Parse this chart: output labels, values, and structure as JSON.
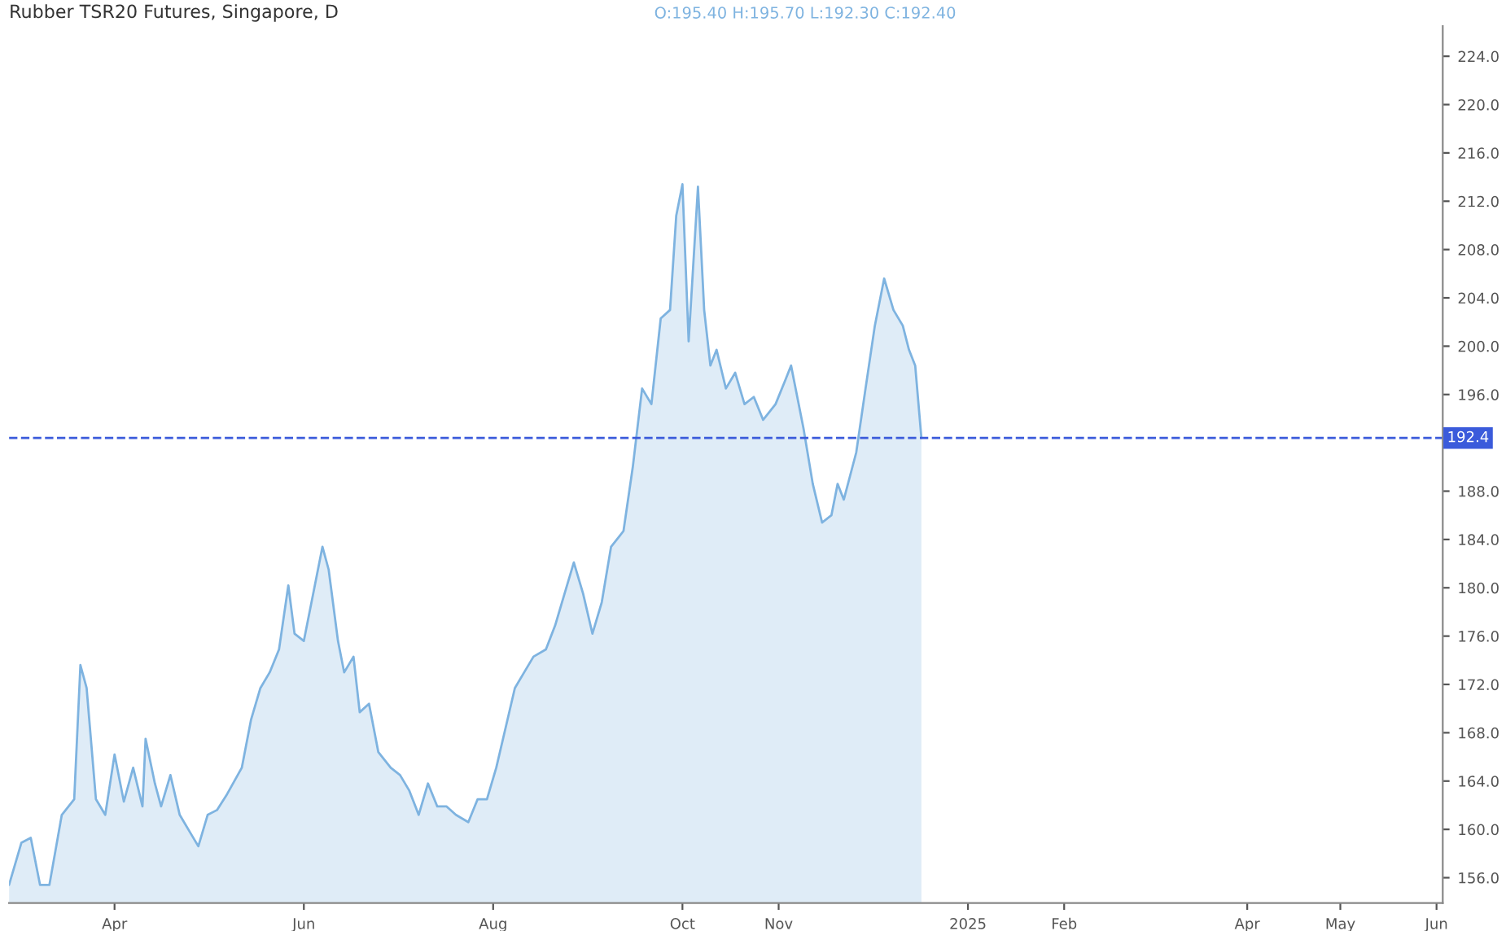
{
  "chart_data": {
    "type": "area",
    "title": "Rubber TSR20 Futures, Singapore, D",
    "annotations": [
      "O:195.40 H:195.70 L:192.30 C:192.40"
    ],
    "x": [
      "2024-02-27",
      "2024-03-02",
      "2024-03-05",
      "2024-03-08",
      "2024-03-11",
      "2024-03-15",
      "2024-03-19",
      "2024-03-21",
      "2024-03-23",
      "2024-03-26",
      "2024-03-29",
      "2024-04-01",
      "2024-04-04",
      "2024-04-07",
      "2024-04-10",
      "2024-04-11",
      "2024-04-14",
      "2024-04-16",
      "2024-04-19",
      "2024-04-22",
      "2024-04-25",
      "2024-04-28",
      "2024-05-01",
      "2024-05-04",
      "2024-05-07",
      "2024-05-12",
      "2024-05-15",
      "2024-05-18",
      "2024-05-21",
      "2024-05-24",
      "2024-05-27",
      "2024-05-29",
      "2024-06-01",
      "2024-06-04",
      "2024-06-07",
      "2024-06-09",
      "2024-06-12",
      "2024-06-14",
      "2024-06-17",
      "2024-06-19",
      "2024-06-22",
      "2024-06-25",
      "2024-06-29",
      "2024-07-02",
      "2024-07-05",
      "2024-07-08",
      "2024-07-11",
      "2024-07-14",
      "2024-07-17",
      "2024-07-20",
      "2024-07-24",
      "2024-07-27",
      "2024-07-30",
      "2024-08-02",
      "2024-08-05",
      "2024-08-08",
      "2024-08-11",
      "2024-08-14",
      "2024-08-18",
      "2024-08-21",
      "2024-08-24",
      "2024-08-27",
      "2024-08-30",
      "2024-09-02",
      "2024-09-05",
      "2024-09-08",
      "2024-09-12",
      "2024-09-15",
      "2024-09-18",
      "2024-09-21",
      "2024-09-24",
      "2024-09-27",
      "2024-09-29",
      "2024-10-01",
      "2024-10-03",
      "2024-10-06",
      "2024-10-08",
      "2024-10-10",
      "2024-10-12",
      "2024-10-15",
      "2024-10-18",
      "2024-10-21",
      "2024-10-24",
      "2024-10-27",
      "2024-10-31",
      "2024-11-03",
      "2024-11-05",
      "2024-11-07",
      "2024-11-09",
      "2024-11-12",
      "2024-11-15",
      "2024-11-18",
      "2024-11-20",
      "2024-11-22",
      "2024-11-26",
      "2024-11-29",
      "2024-12-02",
      "2024-12-05",
      "2024-12-08",
      "2024-12-11",
      "2024-12-13",
      "2024-12-15",
      "2024-12-17"
    ],
    "series": [
      {
        "color": "#7eb3e0",
        "values": [
          155.4,
          158.9,
          159.3,
          155.4,
          155.4,
          161.2,
          162.5,
          173.6,
          171.7,
          162.5,
          161.2,
          166.2,
          162.3,
          165.1,
          161.9,
          167.5,
          163.8,
          161.9,
          164.5,
          161.2,
          159.9,
          158.6,
          161.2,
          161.6,
          162.8,
          165.1,
          169.1,
          171.7,
          173.0,
          174.9,
          180.2,
          176.2,
          175.6,
          179.5,
          183.4,
          181.5,
          175.6,
          173.0,
          174.3,
          169.7,
          170.4,
          166.4,
          165.1,
          164.5,
          163.2,
          161.2,
          163.8,
          161.9,
          161.9,
          161.2,
          160.6,
          162.5,
          162.5,
          165.1,
          168.4,
          171.7,
          173.0,
          174.3,
          174.9,
          176.9,
          179.5,
          182.1,
          179.5,
          176.2,
          178.8,
          183.4,
          184.7,
          190.0,
          196.5,
          195.2,
          202.3,
          203.0,
          210.8,
          213.4,
          200.4,
          213.2,
          203.0,
          198.4,
          199.7,
          196.5,
          197.8,
          195.2,
          195.8,
          193.9,
          195.2,
          197.1,
          198.4,
          195.8,
          193.2,
          188.6,
          185.4,
          186.0,
          188.6,
          187.3,
          191.2,
          196.5,
          201.7,
          205.6,
          203.0,
          201.7,
          199.7,
          198.4,
          192.4
        ]
      }
    ],
    "xlim": [
      "2024-02-27",
      "2025-06-03"
    ],
    "xticks": [
      {
        "value": "2024-04-01",
        "label": "Apr"
      },
      {
        "value": "2024-06-01",
        "label": "Jun"
      },
      {
        "value": "2024-08-01",
        "label": "Aug"
      },
      {
        "value": "2024-10-01",
        "label": "Oct"
      },
      {
        "value": "2024-11-01",
        "label": "Nov"
      },
      {
        "value": "2025-01-01",
        "label": "2025"
      },
      {
        "value": "2025-02-01",
        "label": "Feb"
      },
      {
        "value": "2025-04-01",
        "label": "Apr"
      },
      {
        "value": "2025-05-01",
        "label": "May"
      },
      {
        "value": "2025-06-01",
        "label": "Jun"
      }
    ],
    "ylim": [
      153.9,
      226.5
    ],
    "yticks": [
      {
        "value": 224,
        "label": "224.0"
      },
      {
        "value": 220,
        "label": "220.0"
      },
      {
        "value": 216,
        "label": "216.0"
      },
      {
        "value": 212,
        "label": "212.0"
      },
      {
        "value": 208,
        "label": "208.0"
      },
      {
        "value": 204,
        "label": "204.0"
      },
      {
        "value": 200,
        "label": "200.0"
      },
      {
        "value": 196,
        "label": "196.0"
      },
      {
        "value": 188,
        "label": "188.0"
      },
      {
        "value": 184,
        "label": "184.0"
      },
      {
        "value": 180,
        "label": "180.0"
      },
      {
        "value": 176,
        "label": "176.0"
      },
      {
        "value": 172,
        "label": "172.0"
      },
      {
        "value": 168,
        "label": "168.0"
      },
      {
        "value": 164,
        "label": "164.0"
      },
      {
        "value": 160,
        "label": "160.0"
      },
      {
        "value": 156,
        "label": "156.0"
      }
    ],
    "ref_lines": [
      {
        "axis": "y",
        "value": 192.4,
        "label": "192.4",
        "color": "#3b5bdb",
        "line_style": "dashed"
      }
    ],
    "grid": false,
    "legend": false
  }
}
